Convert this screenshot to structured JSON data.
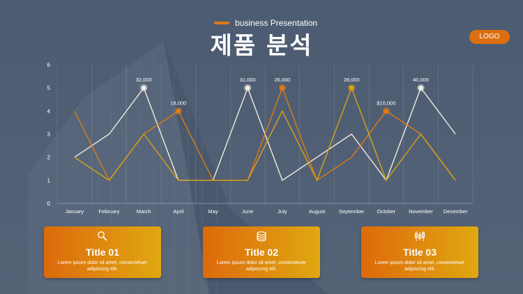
{
  "header": {
    "subtitle": "business Presentation",
    "title": "제품 분석",
    "logo": "LOGO"
  },
  "colors": {
    "orange": "#e07a16",
    "gold": "#e0a810",
    "white": "#ffffff"
  },
  "chart_data": {
    "type": "line",
    "categories": [
      "January",
      "February",
      "March",
      "April",
      "May",
      "June",
      "July",
      "August",
      "September",
      "October",
      "November",
      "December"
    ],
    "ylim": [
      0,
      6
    ],
    "yticks": [
      "0",
      "1",
      "2",
      "3",
      "4",
      "5",
      "6"
    ],
    "grid": true,
    "series": [
      {
        "color": "#f2ede2",
        "values": [
          2,
          3,
          5,
          1,
          1,
          5,
          1,
          2,
          3,
          1,
          5,
          3
        ],
        "labels": [
          {
            "index": 2,
            "text": "32,000"
          },
          {
            "index": 5,
            "text": "31,000"
          },
          {
            "index": 10,
            "text": "40,000"
          }
        ]
      },
      {
        "color": "#e07a16",
        "values": [
          4,
          1,
          3,
          4,
          1,
          1,
          5,
          1,
          2,
          4,
          3,
          1
        ],
        "labels": [
          {
            "index": 3,
            "text": "18,000"
          },
          {
            "index": 6,
            "text": "26,000"
          },
          {
            "index": 9,
            "text": "$10,000"
          }
        ]
      },
      {
        "color": "#d9a414",
        "values": [
          2,
          1,
          3,
          1,
          1,
          1,
          4,
          1,
          5,
          1,
          3,
          1
        ],
        "labels": [
          {
            "index": 8,
            "text": "28,000"
          }
        ]
      }
    ]
  },
  "cards": [
    {
      "icon": "magnifier-icon",
      "title": "Title 01",
      "body": "Lorem ipsum dolor sit amet, consectetuer adipiscing elit."
    },
    {
      "icon": "coins-icon",
      "title": "Title 02",
      "body": "Lorem ipsum dolor sit amet, consectetuer adipiscing elit."
    },
    {
      "icon": "candlestick-icon",
      "title": "Title 03",
      "body": "Lorem ipsum dolor sit amet, consectetuer adipiscing elit."
    }
  ]
}
